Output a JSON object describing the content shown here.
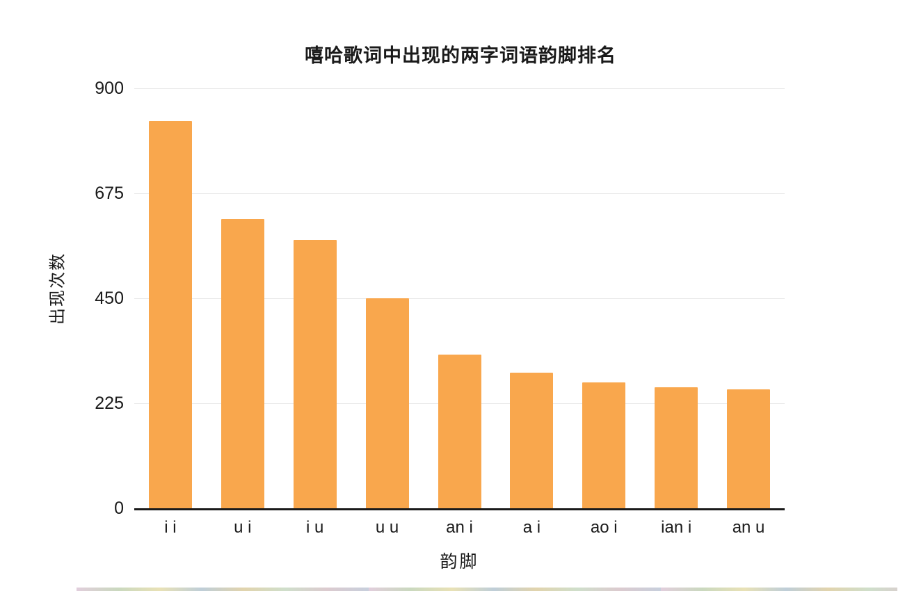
{
  "chart_data": {
    "type": "bar",
    "title": "嘻哈歌词中出现的两字词语韵脚排名",
    "xlabel": "韵脚",
    "ylabel": "出现次数",
    "categories": [
      "i i",
      "u i",
      "i u",
      "u u",
      "an i",
      "a i",
      "ao i",
      "ian i",
      "an u"
    ],
    "values": [
      830,
      620,
      575,
      450,
      330,
      290,
      270,
      260,
      255
    ],
    "yticks": [
      0,
      225,
      450,
      675,
      900
    ],
    "ylim": [
      0,
      900
    ],
    "bar_color": "#F9A74D",
    "gridline_color": "#e8e8e8",
    "axis_line_color": "#1a1a1a",
    "legend": "none",
    "grid": "horizontal"
  }
}
